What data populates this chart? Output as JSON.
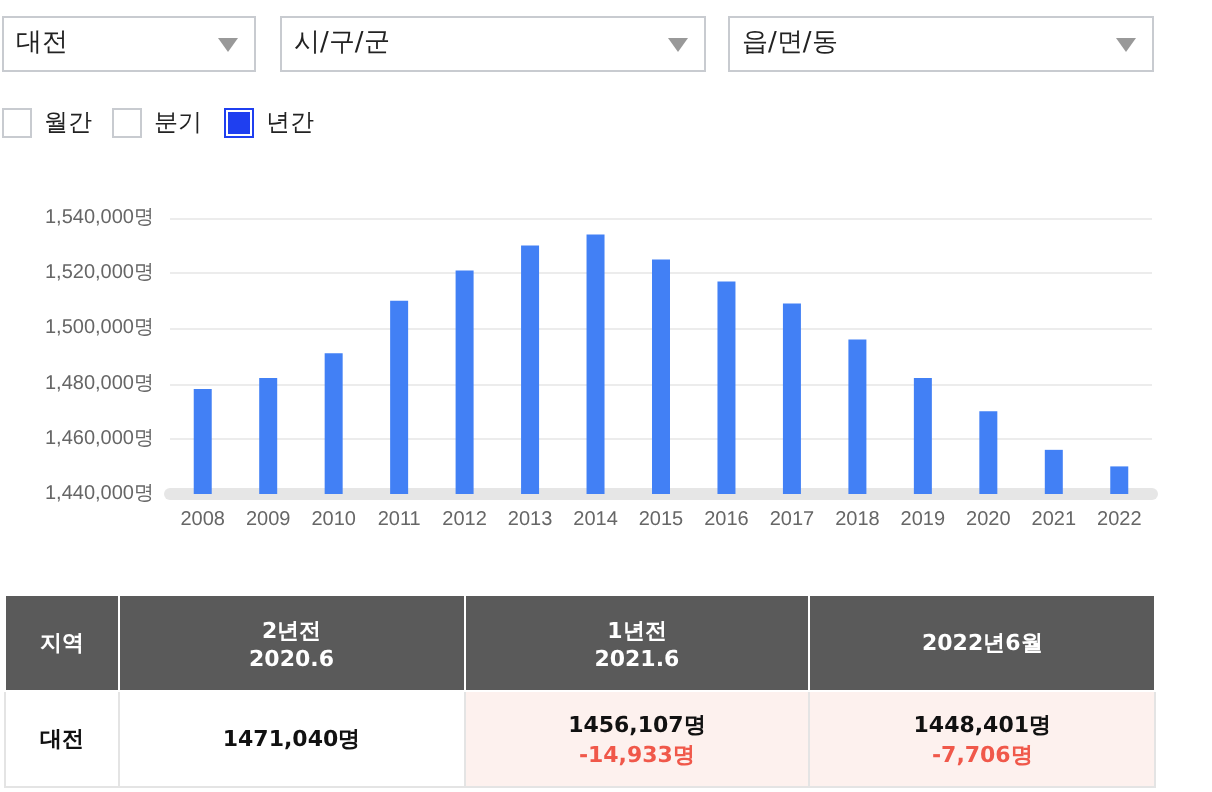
{
  "chart_data": [
    {
      "type": "bar",
      "categories": [
        "2008",
        "2009",
        "2010",
        "2011",
        "2012",
        "2013",
        "2014",
        "2015",
        "2016",
        "2017",
        "2018",
        "2019",
        "2020",
        "2021",
        "2022"
      ],
      "values": [
        1478000,
        1482000,
        1491000,
        1510000,
        1521000,
        1530000,
        1534000,
        1525000,
        1517000,
        1509000,
        1496000,
        1482000,
        1470000,
        1456000,
        1450000
      ],
      "color": "#4280f5",
      "ylim": [
        1440000,
        1540000
      ],
      "yticks": [
        {
          "value": 1440000,
          "label": "1,440,000명"
        },
        {
          "value": 1460000,
          "label": "1,460,000명"
        },
        {
          "value": 1480000,
          "label": "1,480,000명"
        },
        {
          "value": 1500000,
          "label": "1,500,000명"
        },
        {
          "value": 1520000,
          "label": "1,520,000명"
        },
        {
          "value": 1540000,
          "label": "1,540,000명"
        }
      ],
      "grid": "y",
      "annotations": [
        "대전",
        "시/구/군",
        "읍/면/동",
        "월간",
        "분기",
        "년간"
      ]
    },
    {
      "type": "other",
      "annotations": [
        "지역",
        "2년전\n2020.6",
        "1년전\n2021.6",
        "2022년6월",
        "대전",
        "1471,040명",
        "1456,107명\n-14,933명",
        "1448,401명\n-7,706명"
      ]
    }
  ]
}
